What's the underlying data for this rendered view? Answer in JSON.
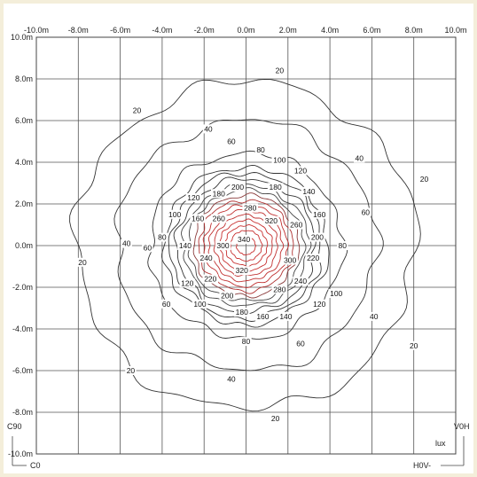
{
  "chart_data": {
    "type": "contour",
    "title": "",
    "xlabel": "",
    "ylabel": "",
    "x_ticks": [
      "-10.0m",
      "-8.0m",
      "-6.0m",
      "-4.0m",
      "-2.0m",
      "0.0m",
      "2.0m",
      "4.0m",
      "6.0m",
      "8.0m",
      "10.0m"
    ],
    "y_ticks": [
      "10.0m",
      "8.0m",
      "6.0m",
      "4.0m",
      "2.0m",
      "0.0m",
      "-2.0m",
      "-4.0m",
      "-6.0m",
      "-8.0m",
      "-10.0m"
    ],
    "xlim": [
      -10,
      10
    ],
    "ylim": [
      -10,
      10
    ],
    "grid": true,
    "unit": "lux",
    "center": [
      0,
      0
    ],
    "contours": [
      {
        "level": 20,
        "radius": 8.1,
        "color": "#333333"
      },
      {
        "level": 40,
        "radius": 6.2,
        "color": "#333333"
      },
      {
        "level": 60,
        "radius": 4.6,
        "color": "#333333"
      },
      {
        "level": 80,
        "radius": 3.9,
        "color": "#333333"
      },
      {
        "level": 100,
        "radius": 3.6,
        "color": "#333333"
      },
      {
        "level": 120,
        "radius": 3.3,
        "color": "#333333"
      },
      {
        "level": 140,
        "radius": 3.0,
        "color": "#444444"
      },
      {
        "level": 160,
        "radius": 2.75,
        "color": "#444444"
      },
      {
        "level": 180,
        "radius": 2.5,
        "color": "#8a3a3a"
      },
      {
        "level": 200,
        "radius": 2.25,
        "color": "#b03030"
      },
      {
        "level": 220,
        "radius": 2.0,
        "color": "#c03030"
      },
      {
        "level": 240,
        "radius": 1.75,
        "color": "#c03030"
      },
      {
        "level": 260,
        "radius": 1.5,
        "color": "#c03030"
      },
      {
        "level": 280,
        "radius": 1.25,
        "color": "#c83030"
      },
      {
        "level": 300,
        "radius": 1.0,
        "color": "#c83030"
      },
      {
        "level": 320,
        "radius": 0.75,
        "color": "#c83030"
      },
      {
        "level": 340,
        "radius": 0.45,
        "color": "#c83030"
      }
    ],
    "labels": [
      {
        "text": "20",
        "x": 1.6,
        "y": 8.4
      },
      {
        "text": "20",
        "x": -5.2,
        "y": 6.5
      },
      {
        "text": "20",
        "x": 8.5,
        "y": 3.2
      },
      {
        "text": "20",
        "x": -7.8,
        "y": -0.8
      },
      {
        "text": "20",
        "x": 8.0,
        "y": -4.8
      },
      {
        "text": "20",
        "x": -5.5,
        "y": -6.0
      },
      {
        "text": "20",
        "x": 1.4,
        "y": -8.3
      },
      {
        "text": "40",
        "x": -1.8,
        "y": 5.6
      },
      {
        "text": "40",
        "x": 5.4,
        "y": 4.2
      },
      {
        "text": "40",
        "x": -5.7,
        "y": 0.1
      },
      {
        "text": "40",
        "x": 6.1,
        "y": -3.4
      },
      {
        "text": "40",
        "x": -0.7,
        "y": -6.4
      },
      {
        "text": "60",
        "x": -0.7,
        "y": 5.0
      },
      {
        "text": "60",
        "x": 5.7,
        "y": 1.6
      },
      {
        "text": "60",
        "x": -4.7,
        "y": -0.1
      },
      {
        "text": "60",
        "x": -3.8,
        "y": -2.8
      },
      {
        "text": "60",
        "x": 2.6,
        "y": -4.7
      },
      {
        "text": "80",
        "x": 0.7,
        "y": 4.6
      },
      {
        "text": "80",
        "x": -4.0,
        "y": 0.4
      },
      {
        "text": "80",
        "x": 4.6,
        "y": 0.0
      },
      {
        "text": "80",
        "x": 0.0,
        "y": -4.6
      },
      {
        "text": "100",
        "x": 1.6,
        "y": 4.1
      },
      {
        "text": "100",
        "x": -3.4,
        "y": 1.5
      },
      {
        "text": "100",
        "x": 4.3,
        "y": -2.3
      },
      {
        "text": "100",
        "x": -2.2,
        "y": -2.8
      },
      {
        "text": "120",
        "x": 2.6,
        "y": 3.6
      },
      {
        "text": "120",
        "x": -2.5,
        "y": 2.3
      },
      {
        "text": "120",
        "x": -2.8,
        "y": -1.8
      },
      {
        "text": "120",
        "x": 3.5,
        "y": -2.8
      },
      {
        "text": "140",
        "x": 3.0,
        "y": 2.6
      },
      {
        "text": "140",
        "x": -2.9,
        "y": 0.0
      },
      {
        "text": "140",
        "x": 1.9,
        "y": -3.4
      },
      {
        "text": "160",
        "x": -2.3,
        "y": 1.3
      },
      {
        "text": "160",
        "x": 3.5,
        "y": 1.5
      },
      {
        "text": "160",
        "x": 0.8,
        "y": -3.4
      },
      {
        "text": "180",
        "x": -1.3,
        "y": 2.5
      },
      {
        "text": "180",
        "x": 1.4,
        "y": 2.8
      },
      {
        "text": "180",
        "x": -0.2,
        "y": -3.2
      },
      {
        "text": "200",
        "x": -0.4,
        "y": 2.8
      },
      {
        "text": "200",
        "x": 3.4,
        "y": 0.4
      },
      {
        "text": "200",
        "x": -0.9,
        "y": -2.4
      },
      {
        "text": "220",
        "x": -1.7,
        "y": -1.6
      },
      {
        "text": "220",
        "x": 3.2,
        "y": -0.6
      },
      {
        "text": "240",
        "x": -1.9,
        "y": -0.6
      },
      {
        "text": "240",
        "x": 2.6,
        "y": -1.7
      },
      {
        "text": "260",
        "x": -1.3,
        "y": 1.3
      },
      {
        "text": "260",
        "x": 2.4,
        "y": 1.0
      },
      {
        "text": "280",
        "x": 0.2,
        "y": 1.8
      },
      {
        "text": "280",
        "x": 1.6,
        "y": -2.1
      },
      {
        "text": "300",
        "x": -1.1,
        "y": 0.0
      },
      {
        "text": "300",
        "x": 2.1,
        "y": -0.7
      },
      {
        "text": "320",
        "x": 1.2,
        "y": 1.2
      },
      {
        "text": "320",
        "x": -0.2,
        "y": -1.2
      },
      {
        "text": "340",
        "x": -0.1,
        "y": 0.3
      }
    ]
  },
  "corners": {
    "c90": "C90",
    "c0": "C0",
    "v0h": "V0H",
    "h0v": "H0V-",
    "lux": "lux"
  }
}
